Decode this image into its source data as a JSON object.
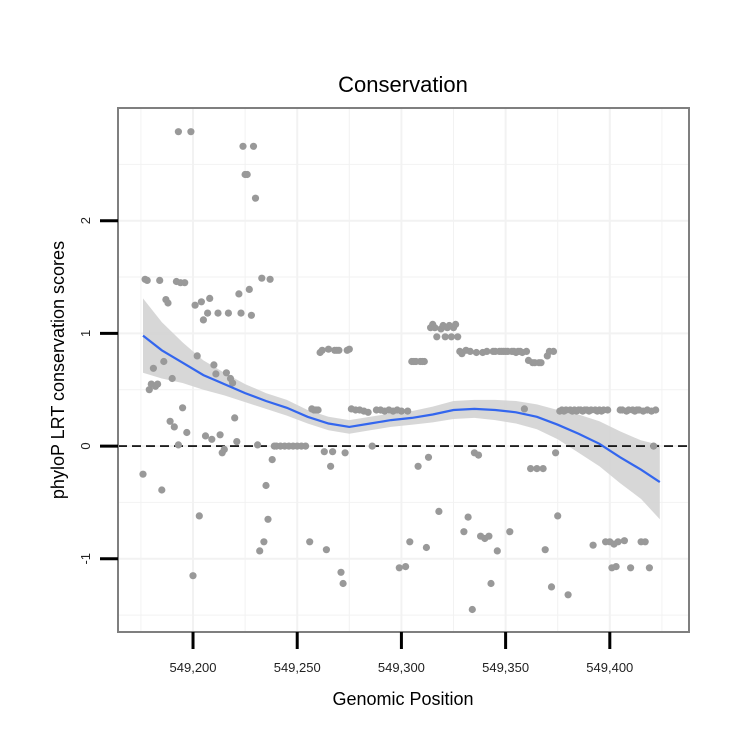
{
  "chart_data": {
    "type": "scatter",
    "title": "Conservation",
    "xlabel": "Genomic Position",
    "ylabel": "phyloP LRT conservation scores",
    "xlim": [
      549164,
      549438
    ],
    "ylim": [
      -1.65,
      3.0
    ],
    "x_ticks": [
      549200,
      549250,
      549300,
      549350,
      549400
    ],
    "x_tick_labels": [
      "549,200",
      "549,250",
      "549,300",
      "549,350",
      "549,400"
    ],
    "y_ticks": [
      -1,
      0,
      1,
      2
    ],
    "y_tick_labels": [
      "-1",
      "0",
      "1",
      "2"
    ],
    "grid": true,
    "reference_line": {
      "y": 0,
      "style": "dashed"
    },
    "colors": {
      "points": "#999999",
      "smooth": "#3366ee",
      "ribbon": "#d3d3d3",
      "panel_border": "#7f7f7f",
      "grid": "#f2f2f2"
    },
    "points": [
      [
        549177,
        1.48
      ],
      [
        549178,
        1.47
      ],
      [
        549179,
        0.5
      ],
      [
        549180,
        0.55
      ],
      [
        549181,
        0.69
      ],
      [
        549182,
        0.53
      ],
      [
        549183,
        0.55
      ],
      [
        549176,
        -0.25
      ],
      [
        549184,
        1.47
      ],
      [
        549185,
        -0.39
      ],
      [
        549186,
        0.75
      ],
      [
        549187,
        1.3
      ],
      [
        549188,
        1.27
      ],
      [
        549189,
        0.22
      ],
      [
        549190,
        0.6
      ],
      [
        549191,
        0.17
      ],
      [
        549192,
        1.46
      ],
      [
        549193,
        0.01
      ],
      [
        549194,
        1.45
      ],
      [
        549195,
        0.34
      ],
      [
        549196,
        1.45
      ],
      [
        549197,
        0.12
      ],
      [
        549193,
        2.79
      ],
      [
        549199,
        2.79
      ],
      [
        549200,
        -1.15
      ],
      [
        549201,
        1.25
      ],
      [
        549202,
        0.8
      ],
      [
        549203,
        -0.62
      ],
      [
        549204,
        1.28
      ],
      [
        549205,
        1.12
      ],
      [
        549206,
        0.09
      ],
      [
        549207,
        1.18
      ],
      [
        549208,
        1.31
      ],
      [
        549209,
        0.06
      ],
      [
        549210,
        0.72
      ],
      [
        549211,
        0.64
      ],
      [
        549212,
        1.18
      ],
      [
        549213,
        0.1
      ],
      [
        549214,
        -0.06
      ],
      [
        549215,
        -0.03
      ],
      [
        549216,
        0.65
      ],
      [
        549217,
        1.18
      ],
      [
        549218,
        0.6
      ],
      [
        549219,
        0.56
      ],
      [
        549220,
        0.25
      ],
      [
        549221,
        0.04
      ],
      [
        549222,
        1.35
      ],
      [
        549223,
        1.18
      ],
      [
        549224,
        2.66
      ],
      [
        549225,
        2.41
      ],
      [
        549226,
        2.41
      ],
      [
        549227,
        1.39
      ],
      [
        549228,
        1.16
      ],
      [
        549229,
        2.66
      ],
      [
        549230,
        2.2
      ],
      [
        549231,
        0.01
      ],
      [
        549232,
        -0.93
      ],
      [
        549233,
        1.49
      ],
      [
        549234,
        -0.85
      ],
      [
        549235,
        -0.35
      ],
      [
        549236,
        -0.65
      ],
      [
        549237,
        1.48
      ],
      [
        549238,
        -0.12
      ],
      [
        549239,
        0.0
      ],
      [
        549240,
        0.0
      ],
      [
        549242,
        0.0
      ],
      [
        549244,
        0.0
      ],
      [
        549246,
        0.0
      ],
      [
        549248,
        0.0
      ],
      [
        549250,
        0.0
      ],
      [
        549252,
        0.0
      ],
      [
        549254,
        0.0
      ],
      [
        549256,
        -0.85
      ],
      [
        549257,
        0.33
      ],
      [
        549258,
        0.32
      ],
      [
        549259,
        0.32
      ],
      [
        549260,
        0.32
      ],
      [
        549261,
        0.83
      ],
      [
        549262,
        0.85
      ],
      [
        549263,
        -0.05
      ],
      [
        549264,
        -0.92
      ],
      [
        549265,
        0.86
      ],
      [
        549266,
        -0.18
      ],
      [
        549267,
        -0.05
      ],
      [
        549268,
        0.85
      ],
      [
        549269,
        0.85
      ],
      [
        549270,
        0.85
      ],
      [
        549271,
        -1.12
      ],
      [
        549272,
        -1.22
      ],
      [
        549273,
        -0.06
      ],
      [
        549274,
        0.85
      ],
      [
        549275,
        0.86
      ],
      [
        549276,
        0.33
      ],
      [
        549278,
        0.32
      ],
      [
        549280,
        0.32
      ],
      [
        549282,
        0.31
      ],
      [
        549284,
        0.3
      ],
      [
        549286,
        0.0
      ],
      [
        549288,
        0.32
      ],
      [
        549290,
        0.32
      ],
      [
        549292,
        0.31
      ],
      [
        549294,
        0.32
      ],
      [
        549296,
        0.31
      ],
      [
        549298,
        0.32
      ],
      [
        549299,
        -1.08
      ],
      [
        549300,
        0.31
      ],
      [
        549302,
        -1.07
      ],
      [
        549303,
        0.31
      ],
      [
        549304,
        -0.85
      ],
      [
        549305,
        0.75
      ],
      [
        549306,
        0.75
      ],
      [
        549307,
        0.75
      ],
      [
        549308,
        -0.18
      ],
      [
        549309,
        0.75
      ],
      [
        549310,
        0.75
      ],
      [
        549311,
        0.75
      ],
      [
        549312,
        -0.9
      ],
      [
        549313,
        -0.1
      ],
      [
        549314,
        1.05
      ],
      [
        549315,
        1.08
      ],
      [
        549316,
        1.05
      ],
      [
        549317,
        0.97
      ],
      [
        549318,
        -0.58
      ],
      [
        549319,
        1.04
      ],
      [
        549320,
        1.07
      ],
      [
        549321,
        0.97
      ],
      [
        549322,
        1.05
      ],
      [
        549323,
        1.07
      ],
      [
        549324,
        0.97
      ],
      [
        549325,
        1.05
      ],
      [
        549326,
        1.08
      ],
      [
        549327,
        0.97
      ],
      [
        549328,
        0.84
      ],
      [
        549329,
        0.82
      ],
      [
        549330,
        -0.76
      ],
      [
        549331,
        0.85
      ],
      [
        549332,
        -0.63
      ],
      [
        549333,
        0.84
      ],
      [
        549334,
        -1.45
      ],
      [
        549335,
        -0.06
      ],
      [
        549336,
        0.83
      ],
      [
        549337,
        -0.08
      ],
      [
        549338,
        -0.8
      ],
      [
        549339,
        0.83
      ],
      [
        549340,
        -0.82
      ],
      [
        549341,
        0.84
      ],
      [
        549342,
        -0.8
      ],
      [
        549343,
        -1.22
      ],
      [
        549344,
        0.84
      ],
      [
        549345,
        0.84
      ],
      [
        549346,
        -0.93
      ],
      [
        549347,
        0.84
      ],
      [
        549348,
        0.84
      ],
      [
        549349,
        0.84
      ],
      [
        549350,
        0.84
      ],
      [
        549351,
        0.84
      ],
      [
        549352,
        -0.76
      ],
      [
        549353,
        0.84
      ],
      [
        549354,
        0.84
      ],
      [
        549355,
        0.83
      ],
      [
        549356,
        0.84
      ],
      [
        549357,
        0.84
      ],
      [
        549358,
        0.83
      ],
      [
        549359,
        0.33
      ],
      [
        549360,
        0.84
      ],
      [
        549361,
        0.76
      ],
      [
        549362,
        -0.2
      ],
      [
        549363,
        0.74
      ],
      [
        549364,
        0.74
      ],
      [
        549365,
        -0.2
      ],
      [
        549366,
        0.74
      ],
      [
        549367,
        0.74
      ],
      [
        549368,
        -0.2
      ],
      [
        549369,
        -0.92
      ],
      [
        549370,
        0.8
      ],
      [
        549371,
        0.84
      ],
      [
        549372,
        -1.25
      ],
      [
        549373,
        0.84
      ],
      [
        549374,
        -0.06
      ],
      [
        549375,
        -0.62
      ],
      [
        549376,
        0.31
      ],
      [
        549377,
        0.32
      ],
      [
        549378,
        0.31
      ],
      [
        549379,
        0.32
      ],
      [
        549380,
        -1.32
      ],
      [
        549381,
        0.32
      ],
      [
        549382,
        0.31
      ],
      [
        549383,
        0.32
      ],
      [
        549384,
        0.31
      ],
      [
        549385,
        0.32
      ],
      [
        549386,
        0.32
      ],
      [
        549387,
        0.31
      ],
      [
        549388,
        0.32
      ],
      [
        549389,
        0.32
      ],
      [
        549390,
        0.31
      ],
      [
        549391,
        0.32
      ],
      [
        549392,
        -0.88
      ],
      [
        549393,
        0.32
      ],
      [
        549394,
        0.31
      ],
      [
        549395,
        0.32
      ],
      [
        549396,
        0.31
      ],
      [
        549397,
        0.32
      ],
      [
        549398,
        -0.85
      ],
      [
        549399,
        0.32
      ],
      [
        549400,
        -0.85
      ],
      [
        549401,
        -1.08
      ],
      [
        549402,
        -0.87
      ],
      [
        549403,
        -1.07
      ],
      [
        549404,
        -0.85
      ],
      [
        549405,
        0.32
      ],
      [
        549406,
        0.32
      ],
      [
        549407,
        -0.84
      ],
      [
        549408,
        0.31
      ],
      [
        549409,
        0.32
      ],
      [
        549410,
        -1.08
      ],
      [
        549411,
        0.32
      ],
      [
        549412,
        0.31
      ],
      [
        549413,
        0.32
      ],
      [
        549414,
        0.32
      ],
      [
        549415,
        -0.85
      ],
      [
        549416,
        0.31
      ],
      [
        549417,
        -0.85
      ],
      [
        549418,
        0.32
      ],
      [
        549419,
        -1.08
      ],
      [
        549420,
        0.31
      ],
      [
        549421,
        0.0
      ],
      [
        549422,
        0.32
      ]
    ],
    "smooth": {
      "x": [
        549176,
        549185,
        549195,
        549205,
        549215,
        549225,
        549235,
        549245,
        549255,
        549265,
        549275,
        549285,
        549295,
        549305,
        549315,
        549325,
        549335,
        549345,
        549355,
        549365,
        549375,
        549385,
        549395,
        549405,
        549415,
        549424
      ],
      "y": [
        0.98,
        0.85,
        0.74,
        0.63,
        0.55,
        0.47,
        0.4,
        0.34,
        0.26,
        0.2,
        0.17,
        0.2,
        0.23,
        0.25,
        0.28,
        0.32,
        0.33,
        0.32,
        0.3,
        0.26,
        0.19,
        0.11,
        0.02,
        -0.1,
        -0.21,
        -0.32
      ],
      "lower": [
        0.65,
        0.6,
        0.56,
        0.5,
        0.45,
        0.39,
        0.33,
        0.27,
        0.2,
        0.14,
        0.11,
        0.14,
        0.17,
        0.19,
        0.21,
        0.24,
        0.25,
        0.23,
        0.2,
        0.15,
        0.06,
        -0.06,
        -0.18,
        -0.33,
        -0.47,
        -0.65
      ],
      "upper": [
        1.31,
        1.1,
        0.92,
        0.76,
        0.65,
        0.55,
        0.47,
        0.41,
        0.32,
        0.26,
        0.23,
        0.26,
        0.29,
        0.31,
        0.35,
        0.4,
        0.41,
        0.41,
        0.4,
        0.37,
        0.32,
        0.28,
        0.22,
        0.13,
        0.05,
        0.01
      ]
    }
  }
}
